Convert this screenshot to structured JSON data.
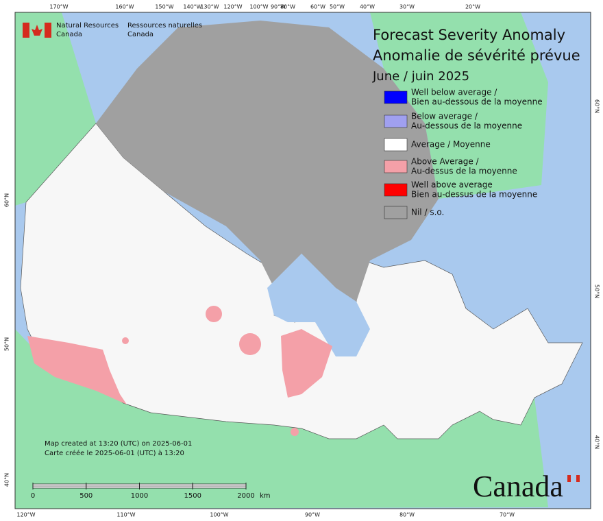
{
  "header": {
    "agency_en": [
      "Natural Resources",
      "Canada"
    ],
    "agency_fr": [
      "Ressources naturelles",
      "Canada"
    ]
  },
  "title": [
    "Forecast Severity Anomaly",
    "Anomalie de sévérité prévue",
    "June / juin 2025"
  ],
  "legend": [
    {
      "label": [
        "Well below average /",
        "Bien au-dessous de la moyenne"
      ],
      "color": "#0000ff"
    },
    {
      "label": [
        "Below average /",
        "Au-dessous de la moyenne"
      ],
      "color": "#a0a0f0"
    },
    {
      "label": [
        "Average / Moyenne"
      ],
      "color": "#ffffff"
    },
    {
      "label": [
        "Above Average /",
        "Au-dessus de la moyenne"
      ],
      "color": "#f4a0a8"
    },
    {
      "label": [
        "Well above average",
        "Bien au-dessus de la moyenne"
      ],
      "color": "#ff0000"
    },
    {
      "label": [
        "Nil / s.o."
      ],
      "color": "#a0a0a0"
    }
  ],
  "graticule": {
    "top": [
      "170°W",
      "160°W",
      "150°W",
      "140°W",
      "130°W",
      "120°W",
      "100°W",
      "90°W",
      "80°W",
      "60°W",
      "50°W",
      "40°W",
      "30°W",
      "20°W"
    ],
    "bottom": [
      "120°W",
      "110°W",
      "100°W",
      "90°W",
      "80°W",
      "70°W"
    ],
    "left": [
      "60°N",
      "50°N",
      "40°N"
    ],
    "right": [
      "60°N",
      "50°N",
      "40°N"
    ]
  },
  "footer": {
    "created": [
      "Map created at 13:20 (UTC) on 2025-06-01",
      "Carte créée le 2025-06-01 (UTC) à 13:20"
    ],
    "scale": [
      0,
      500,
      1000,
      1500,
      2000
    ],
    "scale_unit": "km",
    "wordmark": "Canada"
  }
}
